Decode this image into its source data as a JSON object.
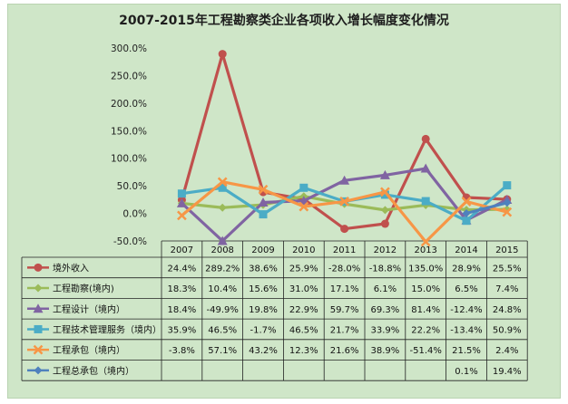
{
  "chart_data": {
    "type": "line",
    "title": "2007-2015年工程勘察类企业各项收入增长幅度变化情况",
    "categories": [
      "2007",
      "2008",
      "2009",
      "2010",
      "2011",
      "2012",
      "2013",
      "2014",
      "2015"
    ],
    "ylim": [
      -50,
      300
    ],
    "yticks": [
      "300.0%",
      "250.0%",
      "200.0%",
      "150.0%",
      "100.0%",
      "50.0%",
      "0.0%",
      "-50.0%"
    ],
    "ytick_values": [
      300,
      250,
      200,
      150,
      100,
      50,
      0,
      -50
    ],
    "grid": false,
    "legend": "data-table",
    "series": [
      {
        "name": "境外收入",
        "color": "#c0504d",
        "marker": "circle",
        "values": [
          24.4,
          289.2,
          38.6,
          25.9,
          -28.0,
          -18.8,
          135.0,
          28.9,
          25.5
        ],
        "labels": [
          "24.4%",
          "289.2%",
          "38.6%",
          "25.9%",
          "-28.0%",
          "-18.8%",
          "135.0%",
          "28.9%",
          "25.5%"
        ]
      },
      {
        "name": "工程勘察(境内)",
        "color": "#9bbb59",
        "marker": "diamond",
        "values": [
          18.3,
          10.4,
          15.6,
          31.0,
          17.1,
          6.1,
          15.0,
          6.5,
          7.4
        ],
        "labels": [
          "18.3%",
          "10.4%",
          "15.6%",
          "31.0%",
          "17.1%",
          "6.1%",
          "15.0%",
          "6.5%",
          "7.4%"
        ]
      },
      {
        "name": "工程设计（境内）",
        "color": "#8064a2",
        "marker": "triangle",
        "values": [
          18.4,
          -49.9,
          19.8,
          22.9,
          59.7,
          69.3,
          81.4,
          -12.4,
          24.8
        ],
        "labels": [
          "18.4%",
          "-49.9%",
          "19.8%",
          "22.9%",
          "59.7%",
          "69.3%",
          "81.4%",
          "-12.4%",
          "24.8%"
        ]
      },
      {
        "name": "工程技术管理服务（境内）",
        "color": "#4bacc6",
        "marker": "square",
        "values": [
          35.9,
          46.5,
          -1.7,
          46.5,
          21.7,
          33.9,
          22.2,
          -13.4,
          50.9
        ],
        "labels": [
          "35.9%",
          "46.5%",
          "-1.7%",
          "46.5%",
          "21.7%",
          "33.9%",
          "22.2%",
          "-13.4%",
          "50.9%"
        ]
      },
      {
        "name": "工程承包（境内）",
        "color": "#f79646",
        "marker": "x",
        "values": [
          -3.8,
          57.1,
          43.2,
          12.3,
          21.6,
          38.9,
          -51.4,
          21.5,
          2.4
        ],
        "labels": [
          "-3.8%",
          "57.1%",
          "43.2%",
          "12.3%",
          "21.6%",
          "38.9%",
          "-51.4%",
          "21.5%",
          "2.4%"
        ]
      },
      {
        "name": "工程总承包（境内）",
        "color": "#4f81bd",
        "marker": "diamond",
        "values": [
          null,
          null,
          null,
          null,
          null,
          null,
          null,
          0.1,
          19.4
        ],
        "labels": [
          "",
          "",
          "",
          "",
          "",
          "",
          "",
          "0.1%",
          "19.4%"
        ]
      }
    ]
  }
}
